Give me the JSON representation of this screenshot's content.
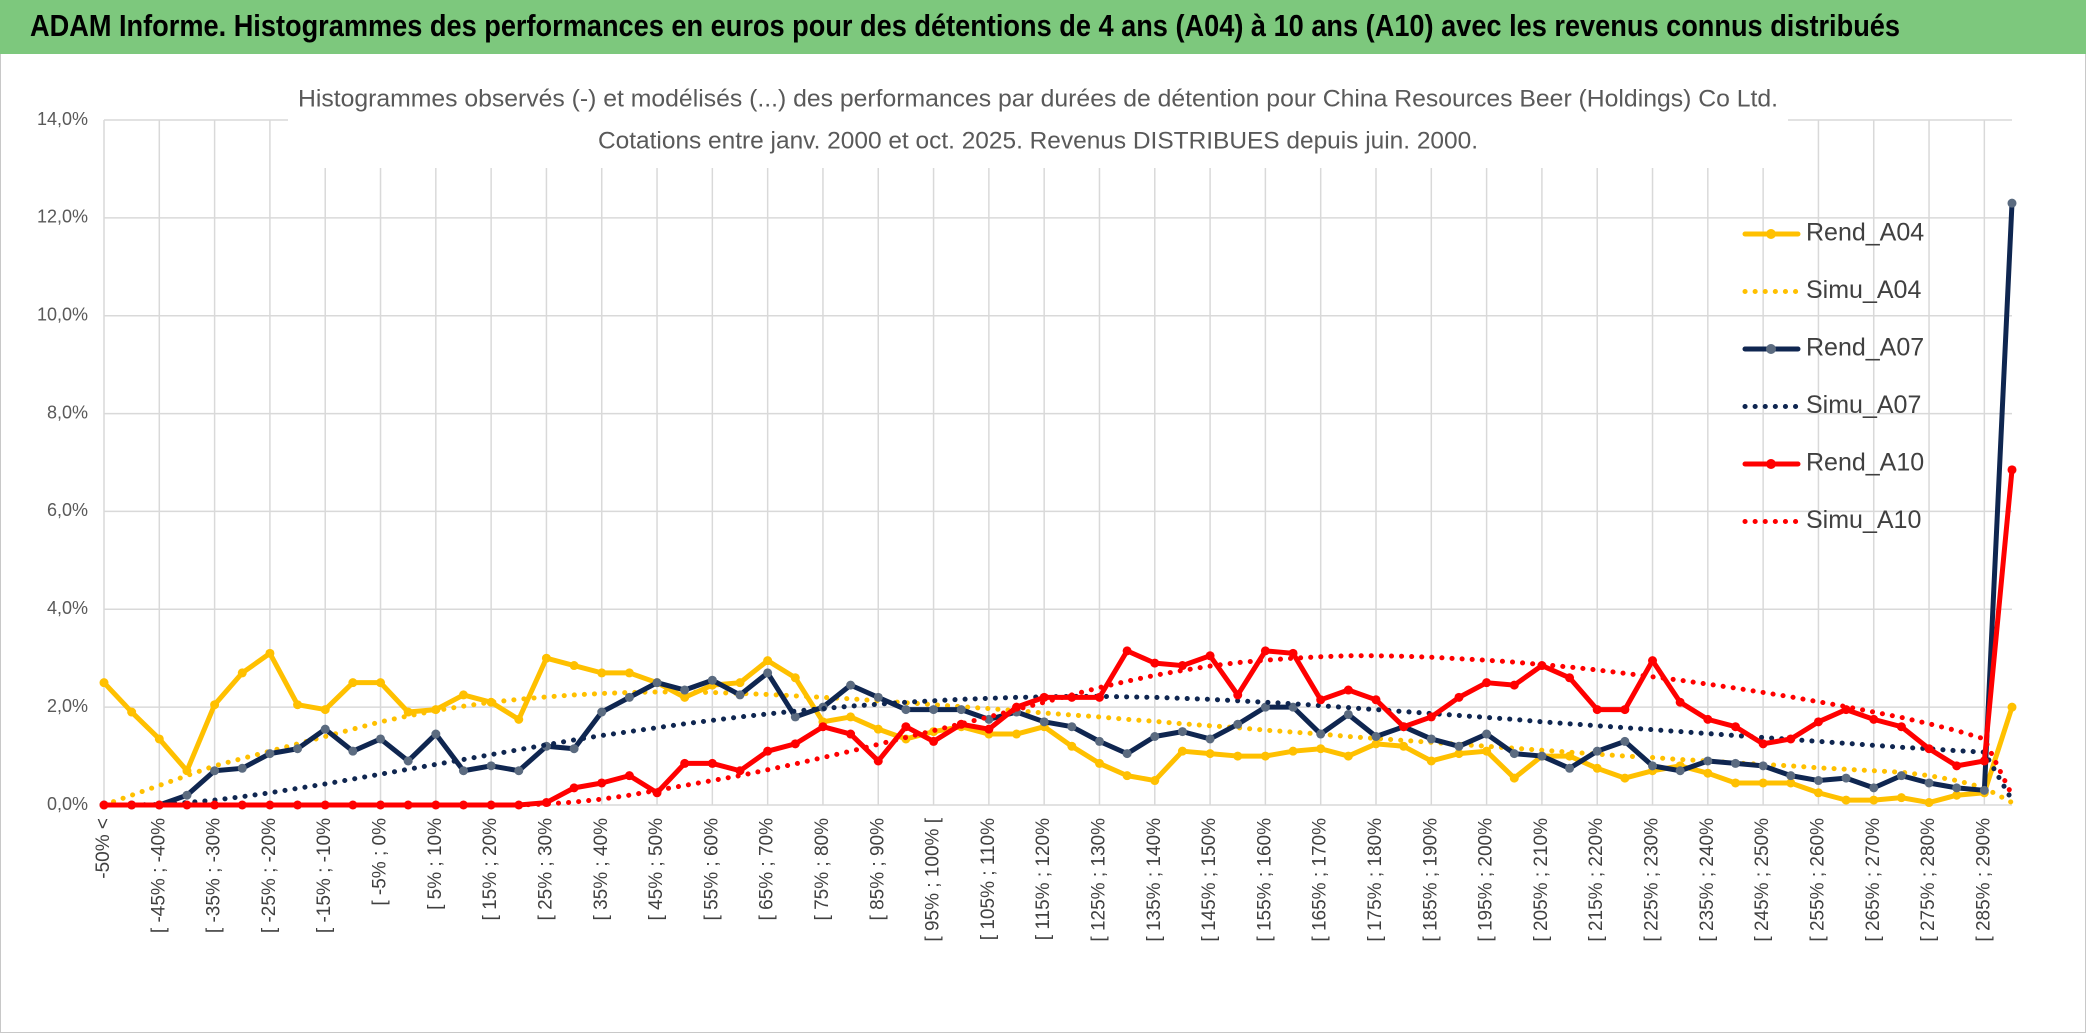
{
  "header": {
    "title": "ADAM Informe. Histogrammes des performances en euros pour des détentions de 4 ans (A04) à 10 ans (A10) avec les revenus connus distribués"
  },
  "chart_data": {
    "type": "line",
    "title": "Histogrammes observés (-) et modélisés (...) des performances par durées de détention pour China Resources Beer (Holdings) Co Ltd.",
    "subtitle": "Cotations entre janv. 2000 et oct. 2025. Revenus DISTRIBUES depuis juin. 2000.",
    "categories": [
      "-50% <",
      null,
      "[ -45% ; -40%",
      null,
      "[ -35% ; -30%",
      null,
      "[ -25% ; -20%",
      null,
      "[ -15% ; -10%",
      null,
      "[ -5% ; 0%",
      null,
      "[ 5% ; 10%",
      null,
      "[ 15% ; 20%",
      null,
      "[ 25% ; 30%",
      null,
      "[ 35% ; 40%",
      null,
      "[ 45% ; 50%",
      null,
      "[ 55% ; 60%",
      null,
      "[ 65% ; 70%",
      null,
      "[ 75% ; 80%",
      null,
      "[ 85% ; 90%",
      null,
      "[ 95% ; 100% [",
      null,
      "[ 105% ; 110%",
      null,
      "[ 115% ; 120%",
      null,
      "[ 125% ; 130%",
      null,
      "[ 135% ; 140%",
      null,
      "[ 145% ; 150%",
      null,
      "[ 155% ; 160%",
      null,
      "[ 165% ; 170%",
      null,
      "[ 175% ; 180%",
      null,
      "[ 185% ; 190%",
      null,
      "[ 195% ; 200%",
      null,
      "[ 205% ; 210%",
      null,
      "[ 215% ; 220%",
      null,
      "[ 225% ; 230%",
      null,
      "[ 235% ; 240%",
      null,
      "[ 245% ; 250%",
      null,
      "[ 255% ; 260%",
      null,
      "[ 265% ; 270%",
      null,
      "[ 275% ; 280%",
      null,
      "[ 285% ; 290%",
      null
    ],
    "ylim": [
      0,
      14
    ],
    "yticks": [
      {
        "value": 0,
        "label": "0,0%"
      },
      {
        "value": 2,
        "label": "2,0%"
      },
      {
        "value": 4,
        "label": "4,0%"
      },
      {
        "value": 6,
        "label": "6,0%"
      },
      {
        "value": 8,
        "label": "8,0%"
      },
      {
        "value": 10,
        "label": "10,0%"
      },
      {
        "value": 12,
        "label": "12,0%"
      },
      {
        "value": 14,
        "label": "14,0%"
      }
    ],
    "grid": true,
    "legend": "right",
    "series": [
      {
        "name": "Rend_A04",
        "color": "#ffc000",
        "marker_color": "#ffc000",
        "style": "solid",
        "values": [
          2.5,
          1.9,
          1.35,
          0.7,
          2.05,
          2.7,
          3.1,
          2.05,
          1.95,
          2.5,
          2.5,
          1.9,
          1.95,
          2.25,
          2.1,
          1.75,
          3.0,
          2.85,
          2.7,
          2.7,
          2.5,
          2.2,
          2.45,
          2.5,
          2.95,
          2.6,
          1.7,
          1.8,
          1.55,
          1.35,
          1.5,
          1.6,
          1.45,
          1.45,
          1.6,
          1.2,
          0.85,
          0.6,
          0.5,
          1.1,
          1.05,
          1.0,
          1.0,
          1.1,
          1.15,
          1.0,
          1.25,
          1.2,
          0.9,
          1.05,
          1.1,
          0.55,
          1.0,
          1.0,
          0.75,
          0.55,
          0.7,
          0.8,
          0.65,
          0.45,
          0.45,
          0.45,
          0.25,
          0.1,
          0.1,
          0.15,
          0.05,
          0.2,
          0.25,
          2.0
        ]
      },
      {
        "name": "Simu_A04",
        "color": "#ffc000",
        "style": "dotted",
        "values": [
          0,
          0.2,
          0.4,
          0.6,
          0.8,
          0.95,
          1.1,
          1.25,
          1.4,
          1.55,
          1.7,
          1.82,
          1.93,
          2.02,
          2.1,
          2.16,
          2.21,
          2.25,
          2.28,
          2.3,
          2.31,
          2.31,
          2.3,
          2.28,
          2.26,
          2.23,
          2.2,
          2.17,
          2.13,
          2.09,
          2.05,
          2.01,
          1.97,
          1.93,
          1.88,
          1.84,
          1.8,
          1.75,
          1.71,
          1.66,
          1.62,
          1.58,
          1.53,
          1.49,
          1.45,
          1.4,
          1.36,
          1.32,
          1.28,
          1.24,
          1.2,
          1.16,
          1.12,
          1.08,
          1.04,
          1.0,
          0.97,
          0.93,
          0.9,
          0.86,
          0.83,
          0.8,
          0.76,
          0.73,
          0.7,
          0.67,
          0.6,
          0.5,
          0.35,
          0.05
        ]
      },
      {
        "name": "Rend_A07",
        "color": "#0f2650",
        "marker_color": "#5b6b80",
        "style": "solid",
        "values": [
          0,
          0,
          0,
          0.2,
          0.7,
          0.75,
          1.05,
          1.15,
          1.55,
          1.1,
          1.35,
          0.9,
          1.45,
          0.7,
          0.8,
          0.7,
          1.2,
          1.15,
          1.9,
          2.2,
          2.5,
          2.35,
          2.55,
          2.25,
          2.7,
          1.8,
          2.0,
          2.45,
          2.2,
          1.95,
          1.95,
          1.95,
          1.75,
          1.9,
          1.7,
          1.6,
          1.3,
          1.05,
          1.4,
          1.5,
          1.35,
          1.65,
          2.0,
          2.0,
          1.45,
          1.85,
          1.4,
          1.6,
          1.35,
          1.2,
          1.45,
          1.05,
          1.0,
          0.75,
          1.1,
          1.3,
          0.8,
          0.7,
          0.9,
          0.85,
          0.8,
          0.6,
          0.5,
          0.55,
          0.35,
          0.6,
          0.45,
          0.35,
          0.3,
          12.3
        ]
      },
      {
        "name": "Simu_A07",
        "color": "#0f2650",
        "style": "dotted",
        "values": [
          0,
          0,
          0.01,
          0.05,
          0.1,
          0.17,
          0.25,
          0.34,
          0.43,
          0.53,
          0.63,
          0.73,
          0.83,
          0.93,
          1.03,
          1.13,
          1.23,
          1.33,
          1.42,
          1.5,
          1.58,
          1.66,
          1.73,
          1.8,
          1.86,
          1.92,
          1.97,
          2.02,
          2.06,
          2.1,
          2.13,
          2.16,
          2.18,
          2.2,
          2.21,
          2.22,
          2.22,
          2.21,
          2.2,
          2.18,
          2.16,
          2.13,
          2.1,
          2.07,
          2.03,
          1.99,
          1.95,
          1.91,
          1.87,
          1.83,
          1.79,
          1.75,
          1.7,
          1.66,
          1.62,
          1.58,
          1.54,
          1.5,
          1.46,
          1.42,
          1.38,
          1.34,
          1.3,
          1.26,
          1.22,
          1.18,
          1.15,
          1.11,
          1.08,
          0.1
        ]
      },
      {
        "name": "Rend_A10",
        "color": "#ff0000",
        "marker_color": "#ff0000",
        "style": "solid",
        "values": [
          0,
          0,
          0,
          0,
          0,
          0,
          0,
          0,
          0,
          0,
          0,
          0,
          0,
          0,
          0,
          0,
          0.05,
          0.35,
          0.45,
          0.6,
          0.25,
          0.85,
          0.85,
          0.7,
          1.1,
          1.25,
          1.6,
          1.45,
          0.9,
          1.6,
          1.3,
          1.65,
          1.55,
          2.0,
          2.2,
          2.2,
          2.2,
          3.15,
          2.9,
          2.85,
          3.05,
          2.25,
          3.15,
          3.1,
          2.15,
          2.35,
          2.15,
          1.6,
          1.8,
          2.2,
          2.5,
          2.45,
          2.85,
          2.6,
          1.95,
          1.95,
          2.95,
          2.1,
          1.75,
          1.6,
          1.25,
          1.35,
          1.7,
          1.95,
          1.75,
          1.6,
          1.15,
          0.8,
          0.9,
          6.85
        ]
      },
      {
        "name": "Simu_A10",
        "color": "#ff0000",
        "style": "dotted",
        "values": [
          0,
          0,
          0,
          0,
          0,
          0,
          0,
          0,
          0,
          0,
          0,
          0,
          0,
          0,
          0,
          0,
          0.02,
          0.06,
          0.12,
          0.2,
          0.3,
          0.4,
          0.5,
          0.6,
          0.72,
          0.84,
          0.97,
          1.1,
          1.24,
          1.38,
          1.52,
          1.66,
          1.8,
          1.95,
          2.1,
          2.25,
          2.4,
          2.53,
          2.65,
          2.75,
          2.84,
          2.91,
          2.96,
          3.0,
          3.03,
          3.05,
          3.05,
          3.04,
          3.02,
          2.99,
          2.96,
          2.92,
          2.87,
          2.82,
          2.76,
          2.69,
          2.62,
          2.55,
          2.47,
          2.39,
          2.3,
          2.21,
          2.11,
          2.01,
          1.9,
          1.79,
          1.66,
          1.52,
          1.35,
          0.2
        ]
      }
    ]
  }
}
